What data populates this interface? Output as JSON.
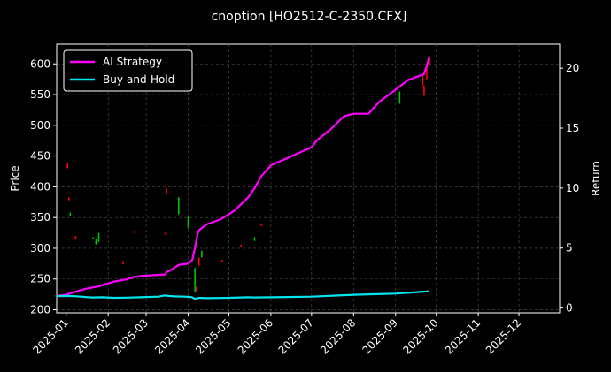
{
  "chart_data": {
    "type": "line",
    "title": "cnoption [HO2512-C-2350.CFX]",
    "ylabel": "Price",
    "y2label": "Return",
    "x_ticks": [
      "2025-01",
      "2025-02",
      "2025-03",
      "2025-04",
      "2025-05",
      "2025-06",
      "2025-07",
      "2025-08",
      "2025-09",
      "2025-10",
      "2025-11",
      "2025-12"
    ],
    "xlim": [
      "2024-12-25",
      "2025-12-31"
    ],
    "ylim": [
      195,
      632
    ],
    "y_ticks": [
      200,
      250,
      300,
      350,
      400,
      450,
      500,
      550,
      600
    ],
    "y2lim": [
      -0.4,
      22
    ],
    "y2_ticks": [
      0,
      5,
      10,
      15,
      20
    ],
    "grid": true,
    "legend": "top-left",
    "colors": {
      "strategy": "#ff00ff",
      "buyhold": "#00e5ee",
      "up": "#00c000",
      "down": "#ff0000"
    },
    "series": [
      {
        "name": "AI Strategy",
        "axis": "right",
        "x": [
          "2024-12-25",
          "2025-01-01",
          "2025-01-06",
          "2025-01-15",
          "2025-01-25",
          "2025-02-05",
          "2025-02-15",
          "2025-02-20",
          "2025-03-01",
          "2025-03-15",
          "2025-03-16",
          "2025-03-20",
          "2025-03-25",
          "2025-04-01",
          "2025-04-04",
          "2025-04-06",
          "2025-04-08",
          "2025-04-09",
          "2025-04-15",
          "2025-04-25",
          "2025-05-05",
          "2025-05-15",
          "2025-05-20",
          "2025-05-25",
          "2025-06-01",
          "2025-06-15",
          "2025-07-01",
          "2025-07-05",
          "2025-07-15",
          "2025-07-25",
          "2025-08-01",
          "2025-08-12",
          "2025-08-20",
          "2025-09-01",
          "2025-09-10",
          "2025-09-22",
          "2025-09-24",
          "2025-09-26"
        ],
        "values": [
          1.0,
          1.1,
          1.3,
          1.6,
          1.8,
          2.2,
          2.4,
          2.6,
          2.7,
          2.8,
          3.0,
          3.2,
          3.6,
          3.7,
          4.0,
          5.0,
          6.2,
          6.5,
          7.0,
          7.4,
          8.1,
          9.2,
          10.0,
          11.0,
          11.9,
          12.6,
          13.4,
          14.0,
          14.9,
          16.0,
          16.2,
          16.2,
          17.2,
          18.2,
          19.0,
          19.5,
          20.2,
          21.0
        ]
      },
      {
        "name": "Buy-and-Hold",
        "axis": "right",
        "x": [
          "2024-12-25",
          "2025-01-05",
          "2025-01-12",
          "2025-01-20",
          "2025-01-28",
          "2025-02-05",
          "2025-02-15",
          "2025-03-01",
          "2025-03-10",
          "2025-03-15",
          "2025-03-18",
          "2025-03-22",
          "2025-03-30",
          "2025-04-04",
          "2025-04-06",
          "2025-04-09",
          "2025-04-15",
          "2025-05-01",
          "2025-05-15",
          "2025-05-20",
          "2025-06-01",
          "2025-07-01",
          "2025-08-01",
          "2025-08-15",
          "2025-09-01",
          "2025-09-26"
        ],
        "values": [
          1.0,
          1.0,
          0.95,
          0.88,
          0.9,
          0.85,
          0.87,
          0.92,
          0.95,
          1.05,
          1.0,
          0.97,
          0.95,
          0.9,
          0.75,
          0.85,
          0.82,
          0.85,
          0.9,
          0.88,
          0.9,
          0.95,
          1.1,
          1.15,
          1.2,
          1.4
        ]
      }
    ],
    "price_bars": [
      {
        "date": "2025-01-02",
        "low": 430,
        "high": 438,
        "dir": "down"
      },
      {
        "date": "2025-01-03",
        "low": 378,
        "high": 383,
        "dir": "down"
      },
      {
        "date": "2025-01-04",
        "low": 352,
        "high": 358,
        "dir": "up"
      },
      {
        "date": "2025-01-08",
        "low": 314,
        "high": 320,
        "dir": "down"
      },
      {
        "date": "2025-01-21",
        "low": 315,
        "high": 318,
        "dir": "up"
      },
      {
        "date": "2025-01-23",
        "low": 306,
        "high": 316,
        "dir": "up"
      },
      {
        "date": "2025-01-25",
        "low": 310,
        "high": 325,
        "dir": "up"
      },
      {
        "date": "2025-02-12",
        "low": 274,
        "high": 279,
        "dir": "down"
      },
      {
        "date": "2025-02-20",
        "low": 325,
        "high": 328,
        "dir": "down"
      },
      {
        "date": "2025-03-15",
        "low": 322,
        "high": 325,
        "dir": "down"
      },
      {
        "date": "2025-03-16",
        "low": 388,
        "high": 398,
        "dir": "down"
      },
      {
        "date": "2025-03-25",
        "low": 355,
        "high": 383,
        "dir": "up"
      },
      {
        "date": "2025-04-01",
        "low": 332,
        "high": 352,
        "dir": "up"
      },
      {
        "date": "2025-04-06",
        "low": 228,
        "high": 268,
        "dir": "up"
      },
      {
        "date": "2025-04-07",
        "low": 230,
        "high": 238,
        "dir": "down"
      },
      {
        "date": "2025-04-09",
        "low": 272,
        "high": 285,
        "dir": "down"
      },
      {
        "date": "2025-04-11",
        "low": 285,
        "high": 296,
        "dir": "up"
      },
      {
        "date": "2025-04-26",
        "low": 278,
        "high": 281,
        "dir": "down"
      },
      {
        "date": "2025-05-10",
        "low": 302,
        "high": 306,
        "dir": "down"
      },
      {
        "date": "2025-05-20",
        "low": 312,
        "high": 318,
        "dir": "up"
      },
      {
        "date": "2025-05-25",
        "low": 336,
        "high": 340,
        "dir": "down"
      },
      {
        "date": "2025-09-04",
        "low": 535,
        "high": 555,
        "dir": "up"
      },
      {
        "date": "2025-09-21",
        "low": 565,
        "high": 582,
        "dir": "down"
      },
      {
        "date": "2025-09-22",
        "low": 548,
        "high": 565,
        "dir": "down"
      },
      {
        "date": "2025-09-24",
        "low": 575,
        "high": 600,
        "dir": "down"
      },
      {
        "date": "2025-09-26",
        "low": 598,
        "high": 612,
        "dir": "down"
      }
    ]
  }
}
